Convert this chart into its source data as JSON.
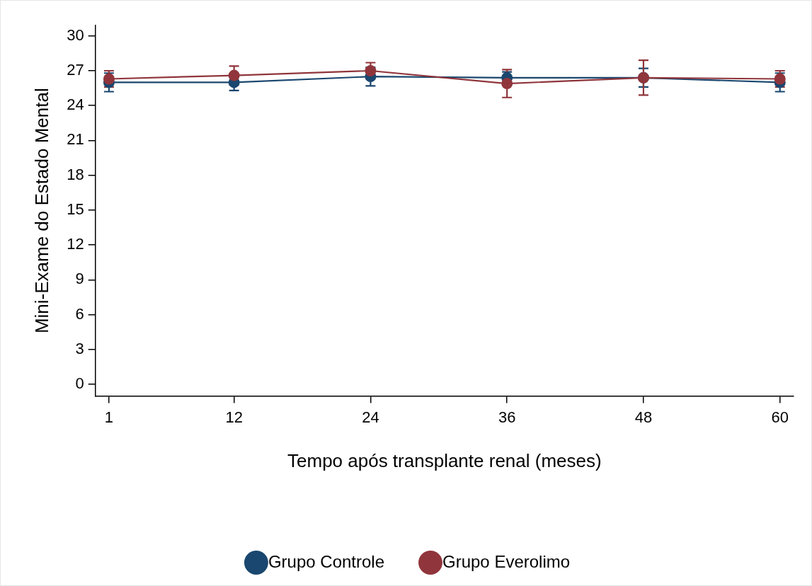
{
  "chart_data": {
    "type": "line",
    "xlabel": "Tempo após transplante renal (meses)",
    "ylabel": "Mini-Exame do Estado Mental",
    "x": [
      1,
      12,
      24,
      36,
      48,
      60
    ],
    "series": [
      {
        "name": "Grupo Controle",
        "color": "#1a476f",
        "values": [
          26.0,
          26.0,
          26.5,
          26.4,
          26.4,
          26.0
        ],
        "errors": [
          0.8,
          0.7,
          0.8,
          0.5,
          0.8,
          0.8
        ]
      },
      {
        "name": "Grupo Everolimo",
        "color": "#90353b",
        "values": [
          26.3,
          26.6,
          27.0,
          25.9,
          26.4,
          26.3
        ],
        "errors": [
          0.7,
          0.8,
          0.7,
          1.2,
          1.5,
          0.7
        ]
      }
    ],
    "xlim": [
      -0.2,
      61.2
    ],
    "xticks": [
      1,
      12,
      24,
      36,
      48,
      60
    ],
    "ylim": [
      -1,
      30.9
    ],
    "yticks": [
      0,
      3,
      6,
      9,
      12,
      15,
      18,
      21,
      24,
      27,
      30
    ],
    "grid": false,
    "legend": "bottom",
    "marker": "circle",
    "line_style": "solid"
  }
}
